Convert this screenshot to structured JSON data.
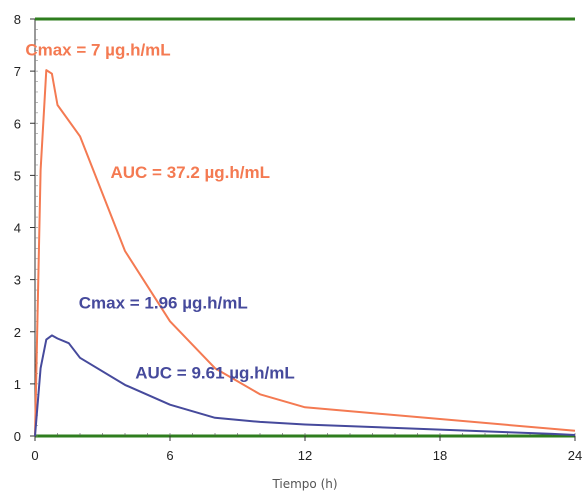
{
  "chart_data": {
    "type": "line",
    "title": "",
    "xlabel": "Tiempo (h)",
    "ylabel": "",
    "xlim": [
      0,
      24
    ],
    "ylim": [
      0,
      8
    ],
    "xticks": [
      0,
      6,
      12,
      18,
      24
    ],
    "yticks": [
      0,
      1,
      2,
      3,
      4,
      5,
      6,
      7,
      8
    ],
    "grid": false,
    "series": [
      {
        "color": "#f47a52",
        "x": [
          0,
          0.25,
          0.5,
          0.75,
          1,
          2,
          4,
          6,
          8,
          10,
          12,
          24
        ],
        "y": [
          0,
          5.1,
          7.02,
          6.95,
          6.35,
          5.75,
          3.55,
          2.2,
          1.3,
          0.8,
          0.55,
          0.1
        ]
      },
      {
        "color": "#464a9c",
        "x": [
          0,
          0.25,
          0.5,
          0.75,
          1,
          1.5,
          2,
          4,
          6,
          8,
          10,
          12,
          23,
          24
        ],
        "y": [
          0,
          1.3,
          1.85,
          1.93,
          1.87,
          1.78,
          1.5,
          0.98,
          0.6,
          0.35,
          0.27,
          0.22,
          0.04,
          0.02
        ]
      }
    ],
    "annotations": [
      {
        "text": "Cmax = 7 µg.h/mL",
        "color": "#f47a52",
        "x": 2.8,
        "y": 7.3
      },
      {
        "text": "AUC = 37.2 µg.h/mL",
        "color": "#f47a52",
        "x": 6.9,
        "y": 4.95
      },
      {
        "text": "Cmax = 1.96 µg.h/mL",
        "color": "#464a9c",
        "x": 5.7,
        "y": 2.45
      },
      {
        "text": "AUC = 9.61 µg.h/mL",
        "color": "#464a9c",
        "x": 8.0,
        "y": 1.1
      }
    ],
    "colors": {
      "top_border": "#2e7d1e",
      "bottom_axis": "#2e7d1e",
      "axis": "#333333"
    }
  }
}
